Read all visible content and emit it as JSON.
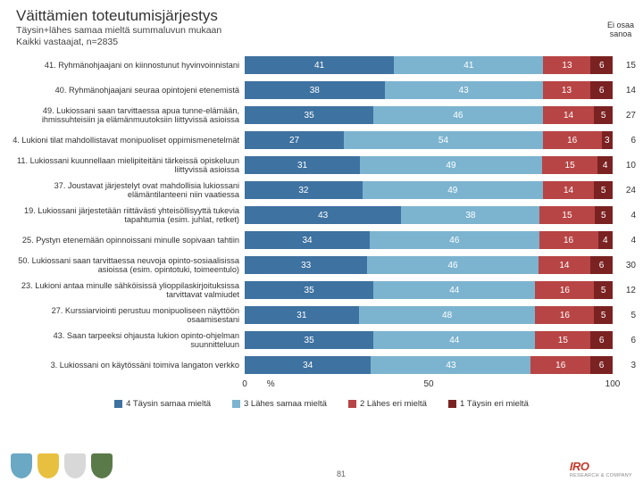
{
  "colors": {
    "seg4": "#3e72a0",
    "seg3": "#7cb4d0",
    "seg2": "#b84545",
    "seg1": "#7a2222",
    "grid": "#cccccc"
  },
  "header": {
    "title": "Väittämien toteutumisjärjestys",
    "subtitle1": "Täysin+lähes samaa mieltä summaluvun mukaan",
    "subtitle2": "Kaikki vastaajat, n=2835",
    "eos": "Ei osaa\nsanoa"
  },
  "xaxis": {
    "ticks": [
      0,
      50,
      100
    ],
    "labels": [
      "0",
      "50",
      "100"
    ],
    "pct": "%"
  },
  "legend": [
    {
      "sw": "seg4",
      "label": "4 Täysin samaa mieltä"
    },
    {
      "sw": "seg3",
      "label": "3 Lähes samaa mieltä"
    },
    {
      "sw": "seg2",
      "label": "2 Lähes eri mieltä"
    },
    {
      "sw": "seg1",
      "label": "1 Täysin eri mieltä"
    }
  ],
  "rows": [
    {
      "label": "41. Ryhmänohjaajani on kiinnostunut hyvinvoinnistani",
      "v": [
        41,
        41,
        13,
        6
      ],
      "eos": 15
    },
    {
      "label": "40. Ryhmänohjaajani seuraa opintojeni etenemistä",
      "v": [
        38,
        43,
        13,
        6
      ],
      "eos": 14
    },
    {
      "label": "49. Lukiossani saan tarvittaessa apua tunne-elämään, ihmissuhteisiin ja elämänmuutoksiin liittyvissä asioissa",
      "v": [
        35,
        46,
        14,
        5
      ],
      "eos": 27
    },
    {
      "label": "4. Lukioni tilat mahdollistavat monipuoliset oppimismenetelmät",
      "v": [
        27,
        54,
        16,
        3
      ],
      "eos": 6
    },
    {
      "label": "11. Lukiossani kuunnellaan mielipiteitäni tärkeissä opiskeluun liittyvissä asioissa",
      "v": [
        31,
        49,
        15,
        4
      ],
      "eos": 10
    },
    {
      "label": "37. Joustavat järjestelyt ovat mahdollisia lukiossani elämäntilanteeni niin vaatiessa",
      "v": [
        32,
        49,
        14,
        5
      ],
      "eos": 24
    },
    {
      "label": "19. Lukiossani järjestetään riittävästi yhteisöllisyyttä tukevia tapahtumia (esim. juhlat, retket)",
      "v": [
        43,
        38,
        15,
        5
      ],
      "eos": 4
    },
    {
      "label": "25. Pystyn etenemään opinnoissani minulle sopivaan tahtiin",
      "v": [
        34,
        46,
        16,
        4
      ],
      "eos": 4
    },
    {
      "label": "50. Lukiossani saan tarvittaessa neuvoja opinto-sosiaalisissa asioissa (esim. opintotuki, toimeentulo)",
      "v": [
        33,
        46,
        14,
        6
      ],
      "eos": 30
    },
    {
      "label": "23. Lukioni antaa minulle sähköisissä ylioppilaskirjoituksissa tarvittavat valmiudet",
      "v": [
        35,
        44,
        16,
        5
      ],
      "eos": 12
    },
    {
      "label": "27. Kurssiarviointi perustuu monipuoliseen näyttöön osaamisestani",
      "v": [
        31,
        48,
        16,
        5
      ],
      "eos": 5
    },
    {
      "label": "43. Saan tarpeeksi ohjausta lukion opinto-ohjelman suunnitteluun",
      "v": [
        35,
        44,
        15,
        6
      ],
      "eos": 6
    },
    {
      "label": "3. Lukiossani on käytössäni toimiva langaton verkko",
      "v": [
        34,
        43,
        16,
        6
      ],
      "eos": 3
    }
  ],
  "footer": {
    "page": "81",
    "brand": "IRO",
    "brand_sub": "RESEARCH & COMPANY"
  }
}
